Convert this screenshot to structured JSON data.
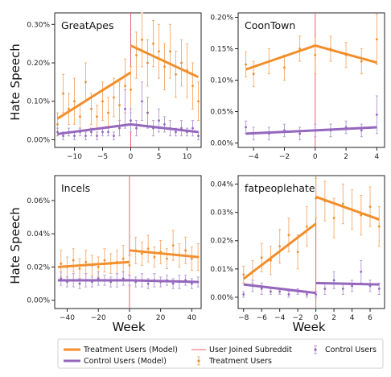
{
  "colors": {
    "treatment": "#f28e2b",
    "treatment_light": "#f7b27a",
    "control": "#9467bd",
    "control_light": "#b9a0d6",
    "joined": "#e8636b"
  },
  "figure": {
    "ylabel": "Hate Speech",
    "xlabel": "Week"
  },
  "legend": {
    "treatment_model": "Treatment Users (Model)",
    "control_model": "Control Users (Model)",
    "joined": "User Joined Subreddit",
    "treatment_users": "Treatment Users",
    "control_users": "Control Users"
  },
  "chart_data": [
    {
      "type": "line",
      "title": "GreatApes",
      "xlim": [
        -13.5,
        12.5
      ],
      "ylim": [
        -0.0002,
        0.0033
      ],
      "xticks": [
        -10,
        -5,
        0,
        5,
        10
      ],
      "yticks": [
        0.0,
        0.001,
        0.002,
        0.003
      ],
      "yticklabels": [
        "0.00%",
        "0.10%",
        "0.20%",
        "0.30%"
      ],
      "series": [
        {
          "name": "Treatment Users (Model)",
          "role": "treatment_model",
          "x": [
            -13,
            0
          ],
          "y": [
            0.00055,
            0.00175
          ]
        },
        {
          "name": "Treatment Users (Model)",
          "role": "treatment_model",
          "x": [
            0,
            12
          ],
          "y": [
            0.00245,
            0.00163
          ]
        },
        {
          "name": "Control Users (Model)",
          "role": "control_model",
          "x": [
            -13,
            0
          ],
          "y": [
            0.00015,
            0.0004
          ]
        },
        {
          "name": "Control Users (Model)",
          "role": "control_model",
          "x": [
            0,
            12
          ],
          "y": [
            0.0004,
            0.0002
          ]
        },
        {
          "name": "Treatment Users",
          "role": "treatment_points",
          "x": [
            -13,
            -12,
            -11,
            -10,
            -9,
            -8,
            -7,
            -6,
            -5,
            -4,
            -3,
            -2,
            -1,
            0,
            1,
            2,
            3,
            4,
            5,
            6,
            7,
            8,
            9,
            10,
            11,
            12
          ],
          "y": [
            0.0004,
            0.0012,
            0.0008,
            0.001,
            0.0006,
            0.0015,
            0.0008,
            0.0006,
            0.001,
            0.0007,
            0.0011,
            0.0009,
            0.0014,
            0.0013,
            0.0022,
            0.0026,
            0.002,
            0.0025,
            0.0023,
            0.0019,
            0.0023,
            0.0017,
            0.002,
            0.0018,
            0.0014,
            0.001
          ],
          "err": [
            0.0003,
            0.0005,
            0.0004,
            0.0006,
            0.0003,
            0.0005,
            0.0004,
            0.0003,
            0.0005,
            0.0004,
            0.0005,
            0.0006,
            0.0007,
            0.0006,
            0.0006,
            0.0007,
            0.0006,
            0.0006,
            0.0007,
            0.0006,
            0.0007,
            0.0006,
            0.0006,
            0.0007,
            0.0006,
            0.0005
          ]
        },
        {
          "name": "Control Users",
          "role": "control_points",
          "x": [
            -13,
            -12,
            -11,
            -10,
            -9,
            -8,
            -7,
            -6,
            -5,
            -4,
            -3,
            -2,
            -1,
            0,
            1,
            2,
            3,
            4,
            5,
            6,
            7,
            8,
            9,
            10,
            11,
            12
          ],
          "y": [
            0.0002,
            0.0001,
            0.0002,
            0.0001,
            0.0002,
            0.0001,
            0.0002,
            0.0001,
            0.0002,
            0.0002,
            0.0001,
            0.0003,
            0.0008,
            0.0005,
            0.0003,
            0.001,
            0.0007,
            0.0003,
            0.0005,
            0.0004,
            0.0003,
            0.0002,
            0.0003,
            0.0002,
            0.0003,
            0.0001
          ],
          "err": [
            0.0001,
            0.0001,
            0.0001,
            0.0001,
            0.0001,
            0.0001,
            0.0001,
            0.0001,
            0.0001,
            0.0001,
            0.0001,
            0.0002,
            0.0005,
            0.0003,
            0.0002,
            0.0005,
            0.0004,
            0.0002,
            0.0003,
            0.0002,
            0.0002,
            0.0001,
            0.0002,
            0.0001,
            0.0002,
            0.0001
          ]
        }
      ]
    },
    {
      "type": "line",
      "title": "CoonTown",
      "xlim": [
        -5,
        4.5
      ],
      "ylim": [
        -7e-05,
        0.00207
      ],
      "xticks": [
        -4,
        -2,
        0,
        2,
        4
      ],
      "yticks": [
        0.0,
        0.0005,
        0.001,
        0.0015,
        0.002
      ],
      "yticklabels": [
        "0.00%",
        "0.05%",
        "0.10%",
        "0.15%",
        "0.20%"
      ],
      "series": [
        {
          "name": "Treatment Users (Model)",
          "role": "treatment_model",
          "x": [
            -4.5,
            0
          ],
          "y": [
            0.00117,
            0.00155
          ]
        },
        {
          "name": "Treatment Users (Model)",
          "role": "treatment_model",
          "x": [
            0,
            4
          ],
          "y": [
            0.00155,
            0.00128
          ]
        },
        {
          "name": "Control Users (Model)",
          "role": "control_model",
          "x": [
            -4.5,
            0
          ],
          "y": [
            0.00015,
            0.0002
          ]
        },
        {
          "name": "Control Users (Model)",
          "role": "control_model",
          "x": [
            0,
            4
          ],
          "y": [
            0.0002,
            0.00025
          ]
        },
        {
          "name": "Treatment Users",
          "role": "treatment_points",
          "x": [
            -4.5,
            -4,
            -3,
            -2,
            -1,
            0,
            1,
            2,
            3,
            4
          ],
          "y": [
            0.00125,
            0.0011,
            0.0013,
            0.0012,
            0.0015,
            0.0014,
            0.0015,
            0.0014,
            0.0013,
            0.00165
          ],
          "err": [
            0.0002,
            0.0002,
            0.0002,
            0.0002,
            0.0002,
            0.0003,
            0.0002,
            0.0002,
            0.0002,
            0.0004
          ]
        },
        {
          "name": "Control Users",
          "role": "control_points",
          "x": [
            -4.5,
            -4,
            -3,
            -2,
            -1,
            0,
            1,
            2,
            3,
            4
          ],
          "y": [
            0.00025,
            0.00015,
            0.00015,
            0.0002,
            0.00015,
            0.0002,
            0.0002,
            0.00025,
            0.0002,
            0.00045
          ],
          "err": [
            0.0001,
            0.0001,
            0.0001,
            0.0001,
            0.0001,
            0.0001,
            0.0001,
            0.0001,
            0.0001,
            0.0003
          ]
        }
      ]
    },
    {
      "type": "line",
      "title": "Incels",
      "xlim": [
        -48,
        46
      ],
      "ylim": [
        -5e-05,
        0.00075
      ],
      "xticks": [
        -40,
        -20,
        0,
        20,
        40
      ],
      "yticks": [
        0.0,
        0.0002,
        0.0004,
        0.0006
      ],
      "yticklabels": [
        "0.00%",
        "0.02%",
        "0.04%",
        "0.06%"
      ],
      "series": [
        {
          "name": "Treatment Users (Model)",
          "role": "treatment_model",
          "x": [
            -46,
            0
          ],
          "y": [
            0.0002,
            0.00023
          ]
        },
        {
          "name": "Treatment Users (Model)",
          "role": "treatment_model",
          "x": [
            0,
            44
          ],
          "y": [
            0.0003,
            0.00026
          ]
        },
        {
          "name": "Control Users (Model)",
          "role": "control_model",
          "x": [
            -46,
            0
          ],
          "y": [
            0.00012,
            0.00012
          ]
        },
        {
          "name": "Control Users (Model)",
          "role": "control_model",
          "x": [
            0,
            44
          ],
          "y": [
            0.00012,
            0.00011
          ]
        },
        {
          "name": "Treatment Users",
          "role": "treatment_points",
          "x": [
            -44,
            -40,
            -36,
            -32,
            -28,
            -24,
            -20,
            -16,
            -12,
            -8,
            -4,
            0,
            4,
            8,
            12,
            16,
            20,
            24,
            28,
            32,
            36,
            40,
            44
          ],
          "y": [
            0.00022,
            0.0002,
            0.00024,
            0.00019,
            0.00023,
            0.00021,
            0.0002,
            0.00024,
            0.00022,
            0.00023,
            0.00025,
            0.00021,
            0.0003,
            0.00028,
            0.00031,
            0.00026,
            0.00029,
            0.00025,
            0.00033,
            0.00027,
            0.0003,
            0.00025,
            0.00026
          ],
          "err": [
            8e-05,
            6e-05,
            7e-05,
            6e-05,
            7e-05,
            6e-05,
            6e-05,
            7e-05,
            6e-05,
            7e-05,
            8e-05,
            6e-05,
            8e-05,
            7e-05,
            8e-05,
            6e-05,
            7e-05,
            6e-05,
            9e-05,
            7e-05,
            8e-05,
            7e-05,
            8e-05
          ]
        },
        {
          "name": "Control Users",
          "role": "control_points",
          "x": [
            -44,
            -40,
            -36,
            -32,
            -28,
            -24,
            -20,
            -16,
            -12,
            -8,
            -4,
            0,
            4,
            8,
            12,
            16,
            20,
            24,
            28,
            32,
            36,
            40,
            44
          ],
          "y": [
            0.00013,
            0.00011,
            0.00012,
            0.0001,
            0.00012,
            0.00011,
            0.00013,
            0.00012,
            0.00011,
            0.00012,
            0.00013,
            0.00012,
            0.00011,
            0.00012,
            0.0001,
            0.00012,
            0.00011,
            0.00012,
            0.0001,
            0.00011,
            0.00012,
            0.0001,
            0.00011
          ],
          "err": [
            4e-05,
            3e-05,
            4e-05,
            3e-05,
            4e-05,
            3e-05,
            4e-05,
            3e-05,
            3e-05,
            4e-05,
            4e-05,
            3e-05,
            3e-05,
            4e-05,
            3e-05,
            4e-05,
            3e-05,
            3e-05,
            3e-05,
            4e-05,
            3e-05,
            3e-05,
            3e-05
          ]
        }
      ]
    },
    {
      "type": "line",
      "title": "fatpeoplehate",
      "xlim": [
        -8.6,
        7.6
      ],
      "ylim": [
        -4e-05,
        0.00043
      ],
      "xticks": [
        -8,
        -6,
        -4,
        -2,
        0,
        2,
        4,
        6
      ],
      "yticks": [
        0.0,
        0.0001,
        0.0002,
        0.0003,
        0.0004
      ],
      "yticklabels": [
        "0.00%",
        "0.01%",
        "0.02%",
        "0.03%",
        "0.04%"
      ],
      "series": [
        {
          "name": "Treatment Users (Model)",
          "role": "treatment_model",
          "x": [
            -8,
            0
          ],
          "y": [
            6.5e-05,
            0.00026
          ]
        },
        {
          "name": "Treatment Users (Model)",
          "role": "treatment_model",
          "x": [
            0,
            7
          ],
          "y": [
            0.000355,
            0.000275
          ]
        },
        {
          "name": "Control Users (Model)",
          "role": "control_model",
          "x": [
            -8,
            0
          ],
          "y": [
            4.5e-05,
            1.5e-05
          ]
        },
        {
          "name": "Control Users (Model)",
          "role": "control_model",
          "x": [
            0,
            7
          ],
          "y": [
            5e-05,
            4.5e-05
          ]
        },
        {
          "name": "Treatment Users",
          "role": "treatment_points",
          "x": [
            -8,
            -7,
            -6,
            -5,
            -4,
            -3,
            -2,
            -1,
            0,
            1,
            2,
            3,
            4,
            5,
            6,
            7
          ],
          "y": [
            8e-05,
            9e-05,
            0.00014,
            0.00013,
            0.00018,
            0.00022,
            0.00016,
            0.00025,
            0.00035,
            0.00034,
            0.00028,
            0.00033,
            0.00031,
            0.00029,
            0.00032,
            0.00025
          ],
          "err": [
            3e-05,
            4e-05,
            5e-05,
            5e-05,
            6e-05,
            6e-05,
            6e-05,
            7e-05,
            7e-05,
            7e-05,
            7e-05,
            7e-05,
            7e-05,
            7e-05,
            7e-05,
            7e-05
          ]
        },
        {
          "name": "Control Users",
          "role": "control_points",
          "x": [
            -8,
            -7,
            -6,
            -5,
            -4,
            -3,
            -2,
            -1,
            0,
            1,
            2,
            3,
            4,
            5,
            6,
            7
          ],
          "y": [
            1e-05,
            4e-05,
            3e-05,
            2e-05,
            2e-05,
            1e-05,
            2e-05,
            1e-05,
            1e-05,
            3e-05,
            6e-05,
            3e-05,
            4e-05,
            9e-05,
            4e-05,
            3e-05
          ],
          "err": [
            1e-05,
            2e-05,
            2e-05,
            1e-05,
            1e-05,
            1e-05,
            1e-05,
            1e-05,
            1e-05,
            2e-05,
            3e-05,
            2e-05,
            2e-05,
            4e-05,
            2e-05,
            2e-05
          ]
        }
      ]
    }
  ]
}
